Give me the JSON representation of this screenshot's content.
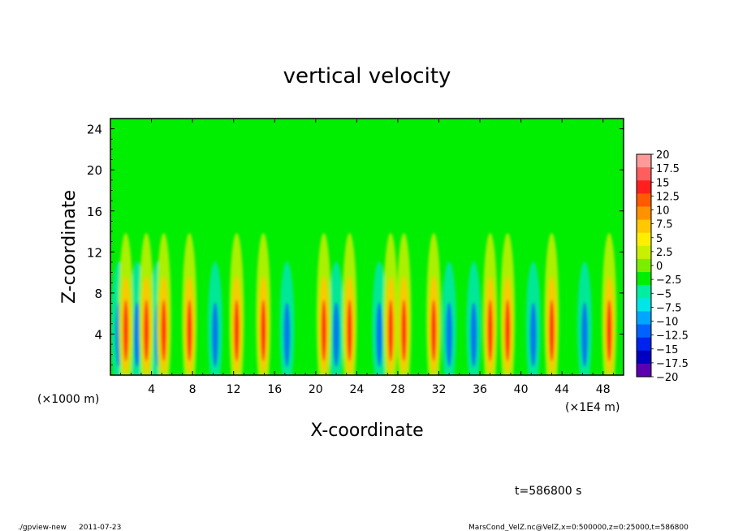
{
  "chart_data": {
    "type": "heatmap",
    "title": "vertical velocity",
    "xlabel": "X-coordinate",
    "ylabel": "Z-coordinate",
    "x_unit_left": "(×1000 m)",
    "x_unit_right": "(×1E4 m)",
    "xlim": [
      0,
      50
    ],
    "ylim": [
      0,
      25
    ],
    "x_ticks": [
      "4",
      "8",
      "12",
      "16",
      "20",
      "24",
      "28",
      "32",
      "36",
      "40",
      "44",
      "48"
    ],
    "x_tick_values": [
      4,
      8,
      12,
      16,
      20,
      24,
      28,
      32,
      36,
      40,
      44,
      48
    ],
    "y_ticks": [
      "4",
      "8",
      "12",
      "16",
      "20",
      "24"
    ],
    "y_tick_values": [
      4,
      8,
      12,
      16,
      20,
      24
    ],
    "colorbar": {
      "levels": [
        "20",
        "17.5",
        "15",
        "12.5",
        "10",
        "7.5",
        "5",
        "2.5",
        "0",
        "−2.5",
        "−5",
        "−7.5",
        "−10",
        "−12.5",
        "−15",
        "−17.5",
        "−20"
      ],
      "colors": [
        "#ff9a9a",
        "#ff5e5e",
        "#ff1f1f",
        "#ff5a00",
        "#ff9200",
        "#ffc800",
        "#ffee00",
        "#c8f000",
        "#7aee00",
        "#00ee00",
        "#00eea0",
        "#00e6e6",
        "#00a6ff",
        "#0062ff",
        "#0022ee",
        "#0000c0",
        "#5a00b0"
      ]
    },
    "features": {
      "background_value": 0,
      "updrafts_x": [
        1.5,
        3.5,
        5.2,
        7.7,
        12.3,
        14.9,
        20.8,
        23.3,
        27.3,
        28.6,
        31.5,
        37.0,
        38.7,
        43.0,
        48.6
      ],
      "downdrafts_x": [
        0.8,
        2.6,
        4.6,
        10.2,
        17.2,
        22.0,
        26.2,
        33.0,
        35.4,
        41.2,
        46.2
      ]
    }
  },
  "annotations": {
    "time": "t=586800 s",
    "program": "./gpview-new",
    "date": "2011-07-23",
    "source": "MarsCond_VelZ.nc@VelZ,x=0:500000,z=0:25000,t=586800"
  }
}
